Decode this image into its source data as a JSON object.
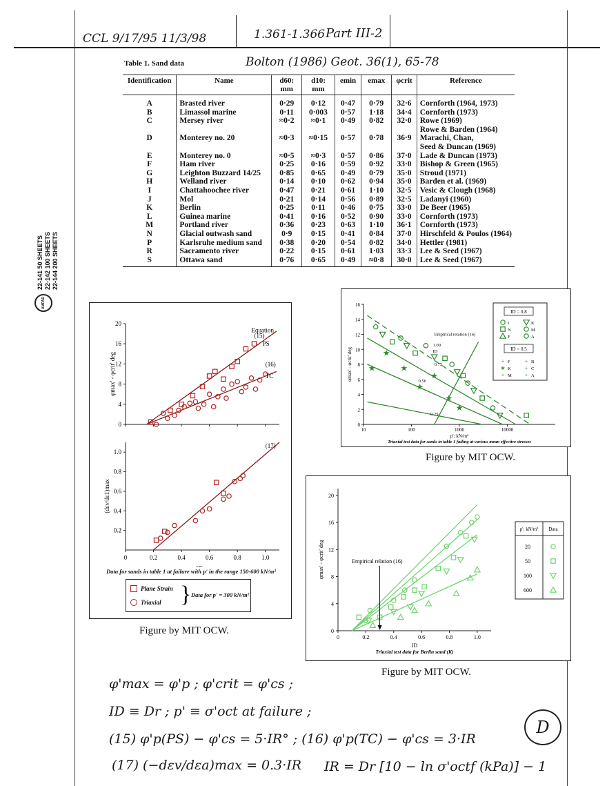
{
  "header": {
    "hand_left": "CCL 9/17/95  11/3/98",
    "hand_pages": "1.361-1.366",
    "hand_part": "Part III-2",
    "table_title": "Table 1.  Sand data",
    "hand_ref": "Bolton (1986) Geot. 36(1), 65-78"
  },
  "margin": {
    "sheets": [
      "22-141    50 SHEETS",
      "22-142   100 SHEETS",
      "22-144   200 SHEETS"
    ],
    "logo": "AMPAD"
  },
  "table": {
    "headers": [
      "Identification",
      "Name",
      "d60: mm",
      "d10: mm",
      "emin",
      "emax",
      "φcrit",
      "Reference"
    ],
    "rows": [
      [
        "A",
        "Brasted river",
        "0·29",
        "0·12",
        "0·47",
        "0·79",
        "32·6",
        "Cornforth (1964, 1973)"
      ],
      [
        "B",
        "Limassol marine",
        "0·11",
        "0·003",
        "0·57",
        "1·18",
        "34·4",
        "Cornforth (1973)"
      ],
      [
        "C",
        "Mersey river",
        "≈0·2",
        "≈0·1",
        "0·49",
        "0·82",
        "32·0",
        "Rowe (1969)"
      ],
      [
        "",
        "",
        "",
        "",
        "",
        "",
        "",
        "Rowe & Barden (1964)"
      ],
      [
        "D",
        "Monterey no. 20",
        "≈0·3",
        "≈0·15",
        "0·57",
        "0·78",
        "36·9",
        "Marachi, Chan,"
      ],
      [
        "",
        "",
        "",
        "",
        "",
        "",
        "",
        "Seed & Duncan (1969)"
      ],
      [
        "E",
        "Monterey no. 0",
        "≈0·5",
        "≈0·3",
        "0·57",
        "0·86",
        "37·0",
        "Lade & Duncan (1973)"
      ],
      [
        "F",
        "Ham river",
        "0·25",
        "0·16",
        "0·59",
        "0·92",
        "33·0",
        "Bishop & Green (1965)"
      ],
      [
        "G",
        "Leighton Buzzard 14/25",
        "0·85",
        "0·65",
        "0·49",
        "0·79",
        "35·0",
        "Stroud (1971)"
      ],
      [
        "H",
        "Welland river",
        "0·14",
        "0·10",
        "0·62",
        "0·94",
        "35·0",
        "Barden et al. (1969)"
      ],
      [
        "I",
        "Chattahoochee river",
        "0·47",
        "0·21",
        "0·61",
        "1·10",
        "32·5",
        "Vesic & Clough (1968)"
      ],
      [
        "J",
        "Mol",
        "0·21",
        "0·14",
        "0·56",
        "0·89",
        "32·5",
        "Ladanyi (1960)"
      ],
      [
        "K",
        "Berlin",
        "0·25",
        "0·11",
        "0·46",
        "0·75",
        "33·0",
        "De Beer (1965)"
      ],
      [
        "L",
        "Guinea marine",
        "0·41",
        "0·16",
        "0·52",
        "0·90",
        "33·0",
        "Cornforth (1973)"
      ],
      [
        "M",
        "Portland river",
        "0·36",
        "0·23",
        "0·63",
        "1·10",
        "36·1",
        "Cornforth (1973)"
      ],
      [
        "N",
        "Glacial outwash sand",
        "0·9",
        "0·15",
        "0·41",
        "0·84",
        "37·0",
        "Hirschfeld & Poulos (1964)"
      ],
      [
        "P",
        "Karlsruhe medium sand",
        "0·38",
        "0·20",
        "0·54",
        "0·82",
        "34·0",
        "Hettler (1981)"
      ],
      [
        "R",
        "Sacramento river",
        "0·22",
        "0·15",
        "0·61",
        "1·03",
        "33·3",
        "Lee & Seed (1967)"
      ],
      [
        "S",
        "Ottawa sand",
        "0·76",
        "0·65",
        "0·49",
        "≈0·8",
        "30·0",
        "Lee & Seed (1967)"
      ]
    ]
  },
  "chart_data": [
    {
      "type": "scatter",
      "title": "",
      "xlabel": "",
      "ylabel": "φmax' - φcrit' deg",
      "xlim": [
        0,
        1.1
      ],
      "ylim": [
        0,
        20
      ],
      "xticks": [
        "0",
        "0.2",
        "0.4",
        "0.6",
        "0.8",
        "1.0"
      ],
      "yticks": [
        "0",
        "4",
        "8",
        "12",
        "16",
        "20"
      ],
      "annotations": [
        "Equation",
        "(15)",
        "PS",
        "(16)",
        "TC"
      ],
      "series": [
        {
          "name": "Plane Strain",
          "color": "#b22222",
          "x": [
            0.18,
            0.32,
            0.4,
            0.48,
            0.55,
            0.6,
            0.64,
            0.7,
            0.76,
            0.8,
            0.86,
            0.92
          ],
          "y": [
            0.5,
            2.8,
            4.0,
            5.7,
            7.5,
            9.6,
            10.5,
            9.0,
            11.5,
            12.5,
            15.0,
            16.0
          ]
        },
        {
          "name": "Triaxial",
          "color": "#b22222",
          "x": [
            0.22,
            0.27,
            0.3,
            0.35,
            0.38,
            0.42,
            0.46,
            0.5,
            0.52,
            0.56,
            0.6,
            0.63,
            0.66,
            0.7,
            0.72,
            0.76,
            0.8,
            0.83,
            0.86,
            0.9,
            0.93,
            0.96,
            1.0
          ],
          "y": [
            0.0,
            2.2,
            1.2,
            1.8,
            2.8,
            3.5,
            4.2,
            4.5,
            3.2,
            4.0,
            6.0,
            3.5,
            5.5,
            7.0,
            5.2,
            8.0,
            8.5,
            6.5,
            7.4,
            9.2,
            7.0,
            8.8,
            10.0
          ]
        }
      ],
      "lines": [
        {
          "name": "(15) PS",
          "x": [
            0.15,
            1.08
          ],
          "y": [
            0.0,
            18.5
          ]
        },
        {
          "name": "(16) TC",
          "x": [
            0.15,
            1.08
          ],
          "y": [
            0.0,
            10.5
          ]
        }
      ]
    },
    {
      "type": "scatter",
      "title": "",
      "xlabel": "ID",
      "ylabel": "(dεv/dε1)max",
      "xlim": [
        0,
        1.1
      ],
      "ylim": [
        0,
        1.1
      ],
      "xticks": [
        "0",
        "0.2",
        "0.4",
        "0.6",
        "0.8",
        "1.0"
      ],
      "yticks": [
        "0.2",
        "0.4",
        "0.6",
        "0.8",
        "1.0"
      ],
      "annotations": [
        "(17)"
      ],
      "series": [
        {
          "name": "Plane Strain",
          "color": "#b22222",
          "x": [
            0.22,
            0.28,
            0.65,
            0.7
          ],
          "y": [
            0.1,
            0.19,
            0.69,
            0.58
          ]
        },
        {
          "name": "Triaxial",
          "color": "#b22222",
          "x": [
            0.25,
            0.3,
            0.35,
            0.5,
            0.55,
            0.6,
            0.7,
            0.74,
            0.78,
            0.82,
            0.84
          ],
          "y": [
            0.12,
            0.18,
            0.25,
            0.3,
            0.4,
            0.42,
            0.52,
            0.55,
            0.7,
            0.73,
            0.76
          ]
        }
      ],
      "lines": [
        {
          "name": "(17)",
          "x": [
            0.2,
            1.1
          ],
          "y": [
            0.0,
            1.1
          ]
        }
      ],
      "caption": "Data for sands in table 1 at failure with p' in the range 150-600 kN/m²",
      "legend": {
        "items": [
          "Plane Strain",
          "Triaxial"
        ],
        "note": "Data for p' = 300 kN/m²"
      }
    },
    {
      "type": "scatter",
      "title": "Triaxial test data for sands in table 1 failing at various mean effective stresses",
      "xlabel": "p': kN/m²",
      "ylabel": "φmax' - φcrit' deg",
      "xscale": "log",
      "xlim": [
        10,
        100000
      ],
      "ylim": [
        0,
        16
      ],
      "xticks": [
        "10",
        "100",
        "1000",
        "10000"
      ],
      "yticks": [
        "0",
        "2",
        "4",
        "6",
        "8",
        "10",
        "12",
        "14",
        "16"
      ],
      "annotations": [
        "Empirical relation (16)",
        "ID",
        "1.00",
        "0.75",
        "0.50",
        "0.25"
      ],
      "legend": {
        "id08": "ID = 0.8",
        "id05": "ID = 0.5",
        "id08_letters": [
          "I",
          "K",
          "N",
          "M",
          "F",
          "A"
        ],
        "id05_letters": [
          "F",
          "B",
          "K",
          "C",
          "M",
          "A"
        ]
      },
      "series": [
        {
          "name": "ID = 0.8",
          "color": "#3aa83a",
          "x": [
            18,
            25,
            40,
            60,
            80,
            120,
            200,
            300,
            500,
            700,
            900,
            1200,
            1500,
            2000,
            3000,
            5000,
            7000,
            25000
          ],
          "y": [
            13,
            12,
            11,
            11.5,
            10.5,
            9.5,
            10.5,
            9,
            8.8,
            8,
            7,
            6.5,
            5.5,
            4.5,
            3.5,
            2.2,
            1.2,
            1.2
          ]
        },
        {
          "name": "ID = 0.5",
          "color": "#3aa83a",
          "x": [
            15,
            30,
            70,
            150,
            300,
            600,
            1000
          ],
          "y": [
            7.5,
            9.5,
            7.5,
            5,
            6.5,
            3.5,
            2.2
          ]
        }
      ],
      "lines": [
        {
          "name": "1.00",
          "x": [
            12,
            30000
          ],
          "y": [
            14.5,
            0
          ]
        },
        {
          "name": "0.75",
          "x": [
            12,
            15000
          ],
          "y": [
            11.5,
            0
          ]
        },
        {
          "name": "0.50",
          "x": [
            12,
            8000
          ],
          "y": [
            8,
            0
          ]
        },
        {
          "name": "0.25",
          "x": [
            12,
            3000
          ],
          "y": [
            3,
            0
          ]
        },
        {
          "name": "Empirical relation (16)",
          "x": [
            300,
            2500
          ],
          "y": [
            0,
            11
          ]
        }
      ],
      "credit": "Figure by MIT OCW."
    },
    {
      "type": "scatter",
      "title": "Triaxial test data for Berlin sand (K)",
      "xlabel": "ID",
      "ylabel": "φmax' - φcrit' deg",
      "xlim": [
        0,
        1.1
      ],
      "ylim": [
        0,
        21
      ],
      "xticks": [
        "0",
        "0.2",
        "0.4",
        "0.6",
        "0.8",
        "1.0"
      ],
      "yticks": [
        "0",
        "4",
        "8",
        "12",
        "16",
        "20"
      ],
      "annotations": [
        "Empirical relation (16)"
      ],
      "legend": {
        "header": [
          "p': kN/m²",
          "Data"
        ],
        "rows": [
          "20",
          "50",
          "100",
          "600"
        ]
      },
      "series": [
        {
          "name": "20",
          "marker": "circle",
          "color": "#6fd36f",
          "x": [
            0.2,
            0.23,
            0.4,
            0.48,
            0.55,
            0.78,
            0.88,
            0.96,
            1.0
          ],
          "y": [
            1.5,
            3.0,
            4.5,
            6.0,
            7.5,
            12.5,
            14.5,
            16.0,
            16.8
          ]
        },
        {
          "name": "50",
          "marker": "square",
          "color": "#6fd36f",
          "x": [
            0.15,
            0.3,
            0.38,
            0.47,
            0.55,
            0.62,
            0.72,
            0.83,
            0.92
          ],
          "y": [
            2.0,
            2.0,
            3.5,
            5.0,
            6.0,
            6.5,
            9.2,
            10.8,
            14.0
          ]
        },
        {
          "name": "100",
          "marker": "triangle-down",
          "color": "#6fd36f",
          "x": [
            0.22,
            0.4,
            0.52,
            0.6,
            0.78,
            0.88,
            0.98
          ],
          "y": [
            1.5,
            2.8,
            3.5,
            5.5,
            8.8,
            10.5,
            13.5
          ]
        },
        {
          "name": "600",
          "marker": "triangle-up",
          "color": "#6fd36f",
          "x": [
            0.25,
            0.45,
            0.55,
            0.65,
            0.85,
            0.95,
            1.0
          ],
          "y": [
            0.8,
            2.0,
            3.0,
            4.0,
            5.5,
            7.8,
            9.0
          ]
        }
      ],
      "credit": "Figure by MIT OCW."
    }
  ],
  "captions": {
    "fig_left": "Figure by MIT OCW.",
    "fig_top_right": "Figure by MIT OCW.",
    "fig_bottom_right": "Figure by MIT OCW."
  },
  "notes": {
    "line1": "φ'max = φ'p ;  φ'crit = φ'cs ;",
    "line2": "ID ≡ Dr ;  p' ≡ σ'oct at failure ;",
    "line3": "(15) φ'p(PS) − φ'cs = 5·IR° ;  (16) φ'p(TC) − φ'cs = 3·IR",
    "line4": "(17)  (−dεv/dεa)max = 0.3·IR",
    "line5": "IR = Dr [10 − ln σ'octf (kPa)] − 1",
    "circle": "D"
  }
}
